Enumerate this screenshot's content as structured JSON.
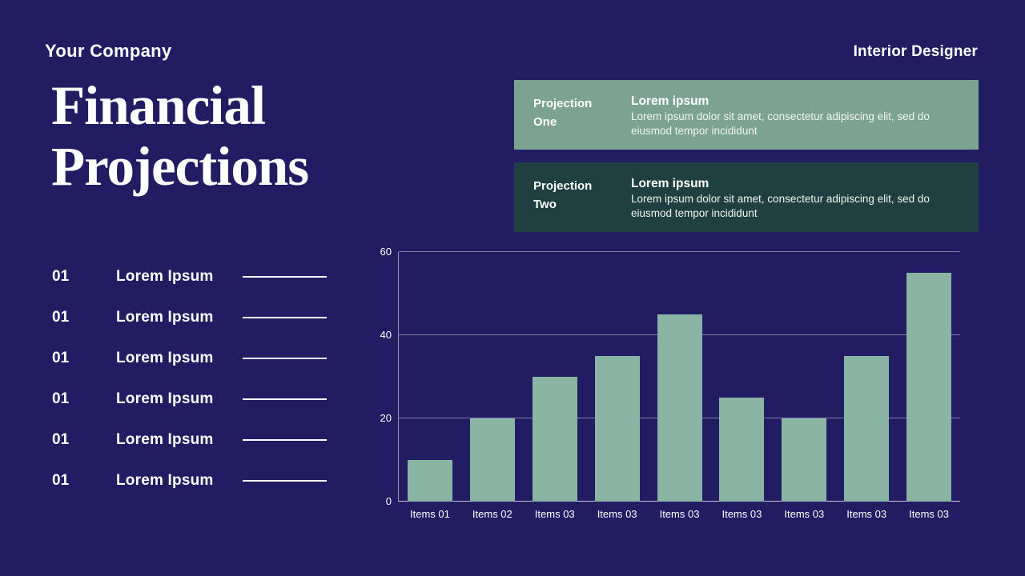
{
  "slide": {
    "bg_color": "#221c62",
    "header": {
      "company": "Your Company",
      "subtitle": "Interior Designer"
    },
    "title": {
      "line1": "Financial",
      "line2": "Projections"
    }
  },
  "projections": {
    "cards": [
      {
        "label_line1": "Projection",
        "label_line2": "One",
        "heading": "Lorem ipsum",
        "body": "Lorem ipsum dolor sit amet, consectetur adipiscing elit, sed do eiusmod tempor incididunt",
        "bg_color": "#7ca392"
      },
      {
        "label_line1": "Projection",
        "label_line2": "Two",
        "heading": "Lorem ipsum",
        "body": "Lorem ipsum dolor sit amet, consectetur adipiscing elit, sed do eiusmod tempor incididunt",
        "bg_color": "#1f3f40"
      }
    ]
  },
  "list": {
    "items": [
      {
        "number": "01",
        "label": "Lorem Ipsum"
      },
      {
        "number": "01",
        "label": "Lorem Ipsum"
      },
      {
        "number": "01",
        "label": "Lorem Ipsum"
      },
      {
        "number": "01",
        "label": "Lorem Ipsum"
      },
      {
        "number": "01",
        "label": "Lorem Ipsum"
      },
      {
        "number": "01",
        "label": "Lorem Ipsum"
      }
    ]
  },
  "chart_data": {
    "type": "bar",
    "categories": [
      "Items 01",
      "Items 02",
      "Items 03",
      "Items 03",
      "Items 03",
      "Items 03",
      "Items 03",
      "Items 03",
      "Items 03"
    ],
    "values": [
      10,
      20,
      30,
      35,
      45,
      25,
      20,
      35,
      55
    ],
    "title": "",
    "xlabel": "",
    "ylabel": "",
    "ylim": [
      0,
      60
    ],
    "yticks": [
      0,
      20,
      40,
      60
    ],
    "grid": true,
    "legend": false,
    "bar_color": "#8ab4a4"
  }
}
